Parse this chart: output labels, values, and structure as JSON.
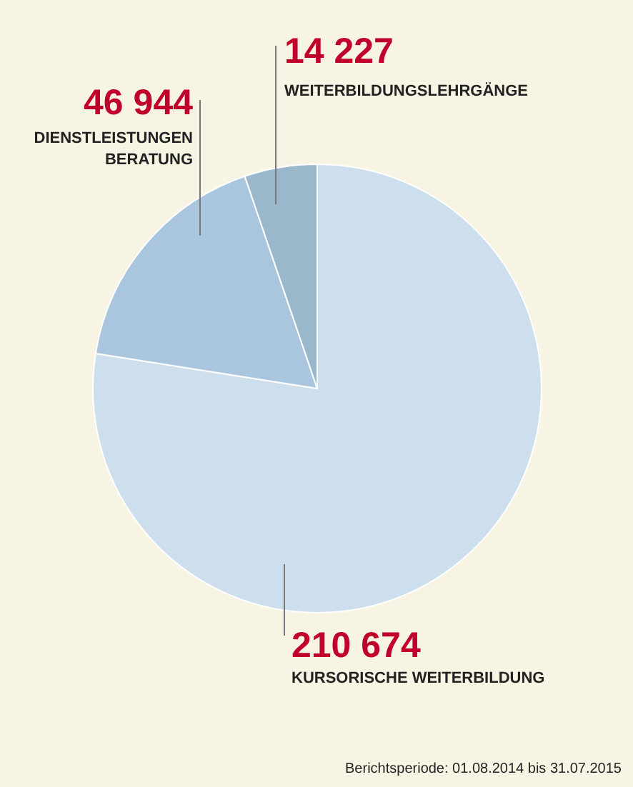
{
  "chart_data": {
    "type": "pie",
    "categories": [
      "KURSORISCHE WEITERBILDUNG",
      "DIENSTLEISTUNGEN\nBERATUNG",
      "WEITERBILDUNGSLEHRGÄNGE"
    ],
    "values": [
      210674,
      46944,
      14227
    ],
    "value_labels": [
      "210 674",
      "46 944",
      "14 227"
    ],
    "colors": [
      "#cddfec",
      "#aac5de",
      "#9ab8cc"
    ],
    "annotations": [
      "Berichtsperiode: 01.08.2014 bis 31.07.2015"
    ]
  }
}
